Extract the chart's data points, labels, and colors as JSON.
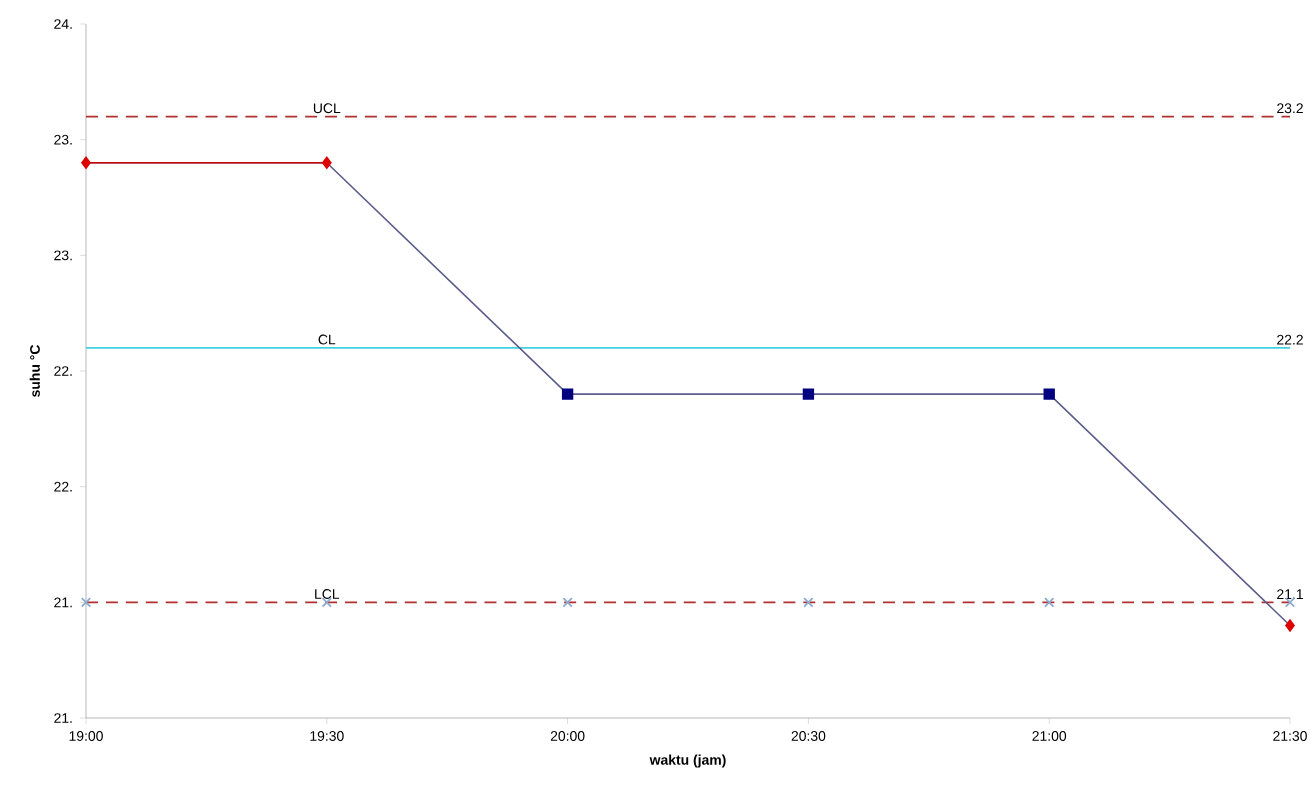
{
  "chart_data": {
    "type": "line",
    "xlabel": "waktu (jam)",
    "ylabel": "suhu °C",
    "categories": [
      "19:00",
      "19:30",
      "20:00",
      "20:30",
      "21:00",
      "21:30"
    ],
    "ylim": [
      20.6,
      23.6
    ],
    "yticks": [
      {
        "value": 20.6,
        "label": "21."
      },
      {
        "value": 21.1,
        "label": "21."
      },
      {
        "value": 21.6,
        "label": "22."
      },
      {
        "value": 22.1,
        "label": "22."
      },
      {
        "value": 22.6,
        "label": "23."
      },
      {
        "value": 23.1,
        "label": "23."
      },
      {
        "value": 23.6,
        "label": "24."
      }
    ],
    "series": [
      {
        "color": "#5c5c8c",
        "marker": "none",
        "values": [
          23.0,
          23.0,
          22.0,
          22.0,
          22.0,
          21.0
        ]
      },
      {
        "type": "line",
        "color": "#cc0000",
        "marker": "none",
        "values": [
          23.0,
          23.0,
          null,
          null,
          null,
          null
        ]
      },
      {
        "type": "scatter",
        "color": "#dd0000",
        "marker": "diamond",
        "values": [
          23.0,
          23.0,
          null,
          null,
          null,
          21.0
        ]
      },
      {
        "type": "scatter",
        "color": "#000080",
        "marker": "square",
        "values": [
          null,
          null,
          22.0,
          22.0,
          22.0,
          null
        ]
      },
      {
        "type": "scatter",
        "color": "#8eaad0",
        "marker": "cross",
        "values": [
          21.1,
          21.1,
          21.1,
          21.1,
          21.1,
          21.1
        ]
      }
    ],
    "ref_lines": [
      {
        "axis": "y",
        "value": 23.2,
        "label": "UCL",
        "color": "#b03030",
        "line_style": "dashed"
      },
      {
        "axis": "y",
        "value": 22.2,
        "label": "CL",
        "color": "#40d0e0",
        "line_style": "solid"
      },
      {
        "axis": "y",
        "value": 21.1,
        "label": "LCL",
        "color": "#b03030",
        "line_style": "dashed"
      }
    ],
    "annotations": [
      {
        "text": "23.2",
        "x": "21:30",
        "y": 23.2
      },
      {
        "text": "22.2",
        "x": "21:30",
        "y": 22.2
      },
      {
        "text": "21.1",
        "x": "21:30",
        "y": 21.1
      }
    ]
  }
}
